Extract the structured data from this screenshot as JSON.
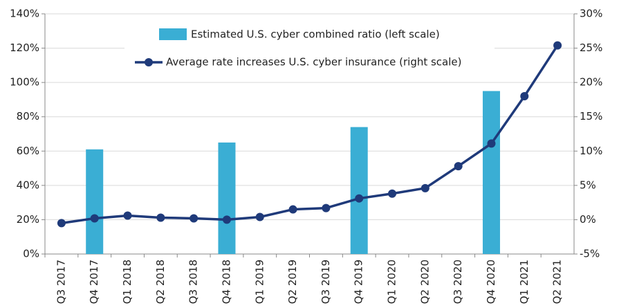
{
  "chart_data": {
    "type": "bar-line",
    "categories": [
      "Q3 2017",
      "Q4 2017",
      "Q1 2018",
      "Q2 2018",
      "Q3 2018",
      "Q4 2018",
      "Q1 2019",
      "Q2 2019",
      "Q3 2019",
      "Q4 2019",
      "Q1 2020",
      "Q2 2020",
      "Q3 2020",
      "Q4 2020",
      "Q1 2021",
      "Q2 2021"
    ],
    "series": [
      {
        "name": "Estimated U.S. cyber combined ratio (left scale)",
        "type": "bar",
        "color": "#3aaed4",
        "axis": "y",
        "values": [
          null,
          61,
          null,
          null,
          null,
          65,
          null,
          null,
          null,
          74,
          null,
          null,
          null,
          95,
          null,
          null
        ]
      },
      {
        "name": "Average rate increases U.S. cyber insurance (right scale)",
        "type": "line",
        "color": "#1f3a7a",
        "axis": "y2",
        "values": [
          -0.5,
          0.2,
          0.6,
          0.3,
          0.2,
          0,
          0.4,
          1.5,
          1.7,
          3.1,
          3.8,
          4.6,
          7.8,
          11.1,
          18.0,
          25.4
        ]
      }
    ],
    "ylim": [
      0,
      140
    ],
    "yticks": [
      {
        "value": 0,
        "label": "0%"
      },
      {
        "value": 20,
        "label": "20%"
      },
      {
        "value": 40,
        "label": "40%"
      },
      {
        "value": 60,
        "label": "60%"
      },
      {
        "value": 80,
        "label": "80%"
      },
      {
        "value": 100,
        "label": "100%"
      },
      {
        "value": 120,
        "label": "120%"
      },
      {
        "value": 140,
        "label": "140%"
      }
    ],
    "y2lim": [
      -5,
      30
    ],
    "y2ticks": [
      {
        "value": -5,
        "label": "-5%"
      },
      {
        "value": 0,
        "label": "0%"
      },
      {
        "value": 5,
        "label": "5%"
      },
      {
        "value": 10,
        "label": "10%"
      },
      {
        "value": 15,
        "label": "15%"
      },
      {
        "value": 20,
        "label": "20%"
      },
      {
        "value": 25,
        "label": "25%"
      },
      {
        "value": 30,
        "label": "30%"
      }
    ],
    "grid": true,
    "legend": "top"
  }
}
